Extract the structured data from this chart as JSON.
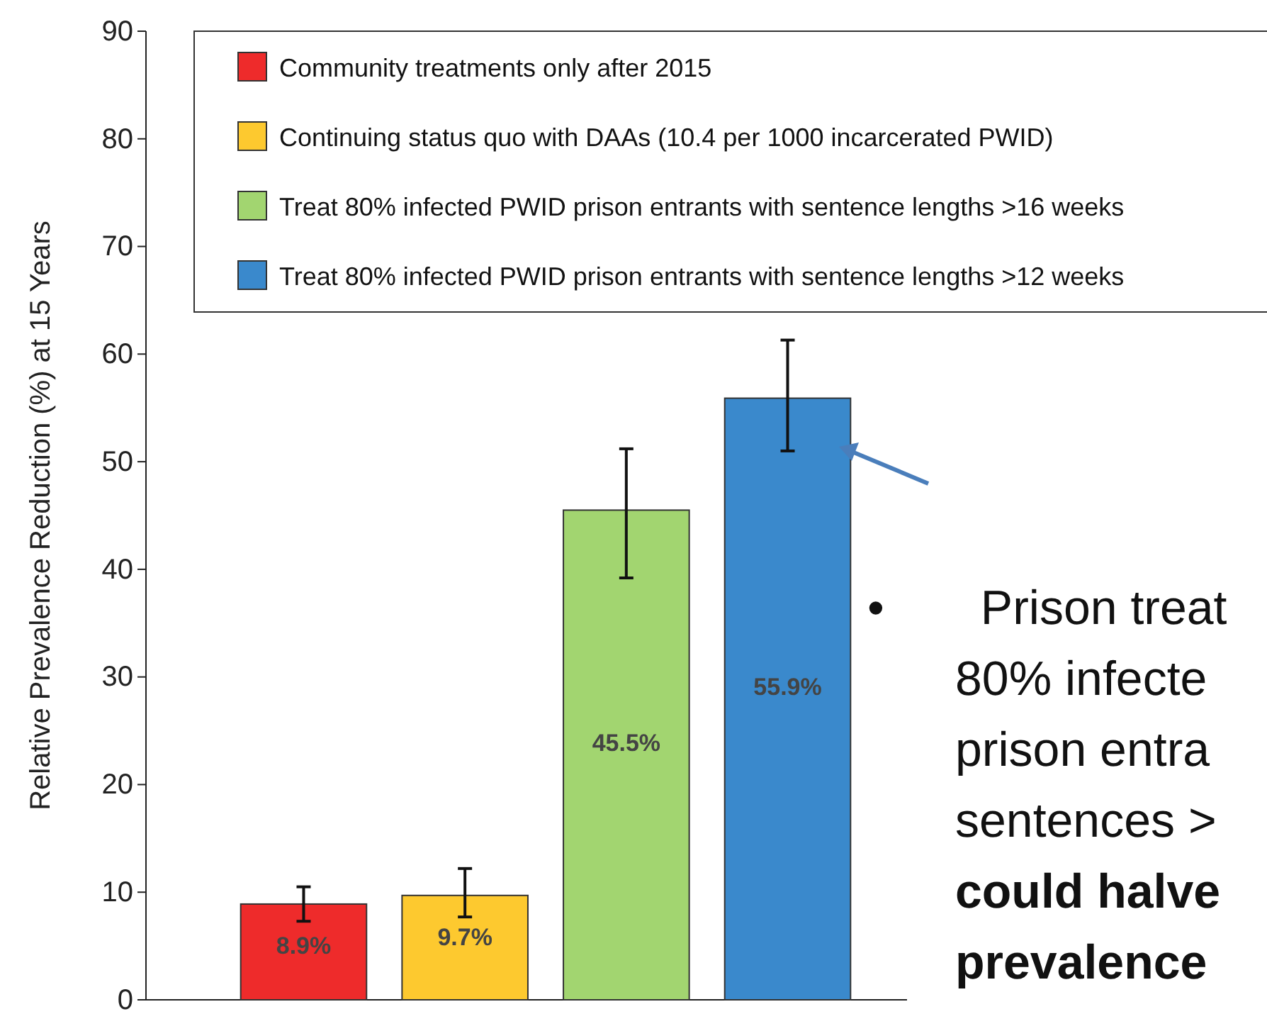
{
  "chart_data": {
    "type": "bar",
    "ylabel": "Relative Prevalence Reduction (%) at 15 Years",
    "categories": [
      null,
      null,
      null,
      null
    ],
    "series": [
      {
        "name": "Community treatments only after 2015",
        "color": "#ee2b2b",
        "values": [
          8.9,
          null,
          null,
          null
        ],
        "errors": [
          [
            7.3,
            10.5
          ],
          null,
          null,
          null
        ],
        "value_labels": [
          "8.9%",
          null,
          null,
          null
        ]
      },
      {
        "name": "Continuing status quo with DAAs (10.4 per 1000 incarcerated PWID)",
        "color": "#fdc92f",
        "values": [
          null,
          9.7,
          null,
          null
        ],
        "errors": [
          null,
          [
            7.7,
            12.2
          ],
          null,
          null
        ],
        "value_labels": [
          null,
          "9.7%",
          null,
          null
        ]
      },
      {
        "name": "Treat 80% infected PWID prison entrants with sentence lengths >16 weeks",
        "color": "#a2d570",
        "values": [
          null,
          null,
          45.5,
          null
        ],
        "errors": [
          null,
          null,
          [
            39.2,
            51.2
          ],
          null
        ],
        "value_labels": [
          null,
          null,
          "45.5%",
          null
        ]
      },
      {
        "name": "Treat 80% infected PWID prison entrants with sentence lengths >12 weeks",
        "color": "#3a89cc",
        "values": [
          null,
          null,
          null,
          55.9
        ],
        "errors": [
          null,
          null,
          null,
          [
            51,
            61.3
          ]
        ],
        "value_labels": [
          null,
          null,
          null,
          "55.9%"
        ]
      }
    ],
    "ylim": [
      0,
      90
    ],
    "yticks": [
      0,
      10,
      20,
      30,
      40,
      50,
      60,
      70,
      80,
      90
    ],
    "grid": false,
    "legend": "top",
    "annotations": [
      "• Prison treat\n80% infecte\nprison entra\nsentences >\ncould halve\nprevalence"
    ]
  }
}
